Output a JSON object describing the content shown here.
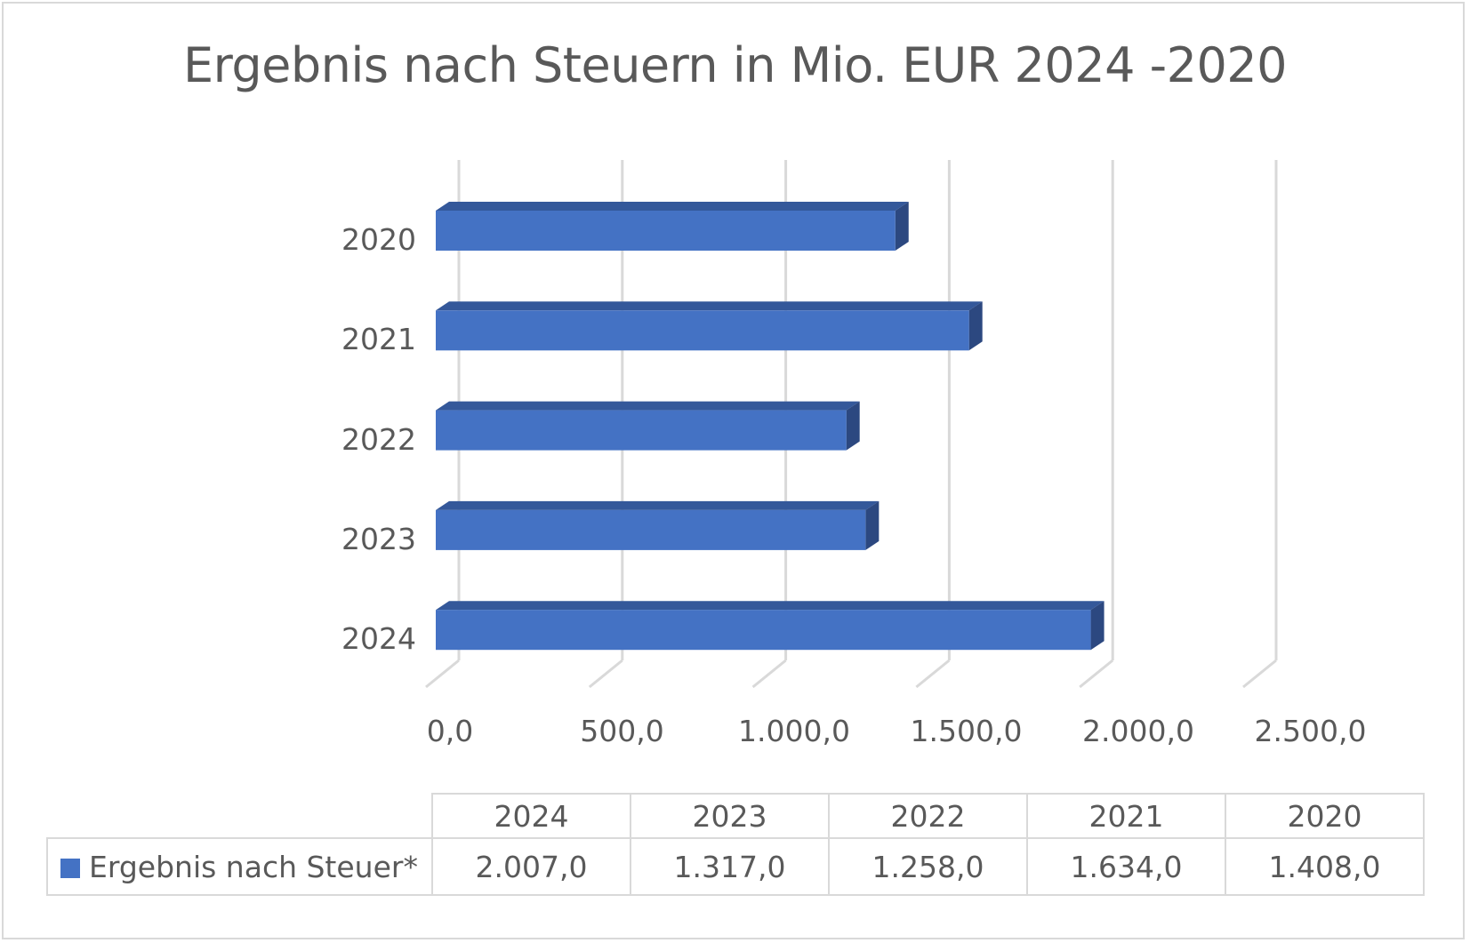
{
  "chart_data": {
    "type": "bar",
    "orientation": "horizontal",
    "style": "3d-clustered",
    "title": "Ergebnis nach Steuern in Mio. EUR 2024 -2020",
    "categories": [
      "2020",
      "2021",
      "2022",
      "2023",
      "2024"
    ],
    "series": [
      {
        "name": "Ergebnis nach Steuer*",
        "values": [
          1408.0,
          1634.0,
          1258.0,
          1317.0,
          2007.0
        ],
        "color": "#4472c4"
      }
    ],
    "xlabel": "",
    "ylabel": "",
    "xlim": [
      0,
      2500
    ],
    "x_ticks": [
      "0,0",
      "500,0",
      "1.000,0",
      "1.500,0",
      "2.000,0",
      "2.500,0"
    ],
    "grid": true,
    "legend": "data-table",
    "data_table": {
      "headers": [
        "2024",
        "2023",
        "2022",
        "2021",
        "2020"
      ],
      "rows": [
        {
          "label": "Ergebnis nach Steuer*",
          "values": [
            "2.007,0",
            "1.317,0",
            "1.258,0",
            "1.634,0",
            "1.408,0"
          ]
        }
      ]
    }
  },
  "colors": {
    "bar_front": "#4472c4",
    "bar_top": "#34589a",
    "bar_side": "#2c4880",
    "gridline": "#d9d9d9",
    "text": "#595959"
  }
}
